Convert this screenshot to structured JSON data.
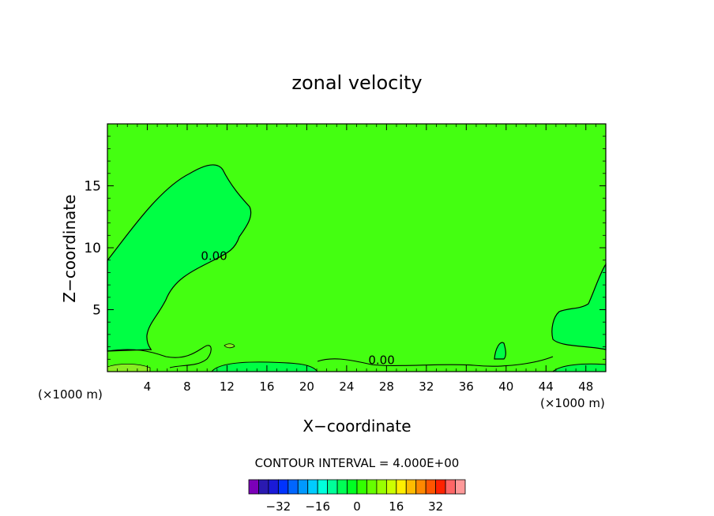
{
  "chart_data": {
    "type": "heatmap",
    "title": "zonal velocity",
    "xlabel": "X−coordinate",
    "ylabel": "Z−coordinate",
    "x_units_left": "(×1000 m)",
    "x_units_right": "(×1000 m)",
    "xlim": [
      0,
      50
    ],
    "ylim": [
      0,
      20
    ],
    "x_ticks": [
      4,
      8,
      12,
      16,
      20,
      24,
      28,
      32,
      36,
      40,
      44,
      48
    ],
    "x_tick_labels": [
      "4",
      "8",
      "12",
      "16",
      "20",
      "24",
      "28",
      "32",
      "36",
      "40",
      "44",
      "48"
    ],
    "y_ticks": [
      5,
      10,
      15
    ],
    "y_tick_labels": [
      "5",
      "10",
      "15"
    ],
    "contour_interval_label": "CONTOUR INTERVAL = 4.000E+00",
    "contour_labels": [
      {
        "text": "0.00",
        "x": 10.7,
        "z": 9.0
      },
      {
        "text": "0.00",
        "x": 27.5,
        "z": 0.6
      }
    ],
    "colorbar": {
      "colors": [
        "#7b00b8",
        "#2a1ab0",
        "#1a1ad8",
        "#0033ff",
        "#0066ff",
        "#0099ff",
        "#00ccff",
        "#00ffdd",
        "#00ff99",
        "#00ff55",
        "#00ff22",
        "#33ff00",
        "#66ff00",
        "#99ff00",
        "#ccff00",
        "#ffee00",
        "#ffbb00",
        "#ff8800",
        "#ff5500",
        "#ff2200",
        "#ff6666",
        "#ff9999"
      ],
      "tick_values": [
        -32,
        -16,
        0,
        16,
        32
      ],
      "tick_labels": [
        "−32",
        "−16",
        "0",
        "16",
        "32"
      ]
    },
    "colors": {
      "background": "#44ff11",
      "negative_region": "#00ff44",
      "positive_band": "#88ee22"
    }
  }
}
